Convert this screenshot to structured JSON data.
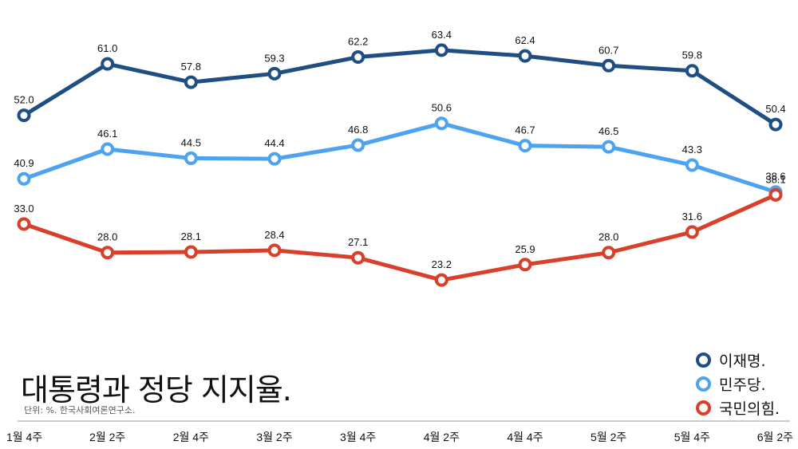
{
  "chart_data": {
    "type": "line",
    "title": "대통령과 정당 지지율.",
    "subtitle": "단위: %. 한국사회여론연구소.",
    "categories": [
      "1월 4주",
      "2월 2주",
      "2월 4주",
      "3월 2주",
      "3월 4주",
      "4월 2주",
      "4월 4주",
      "5월 2주",
      "5월 4주",
      "6월 2주"
    ],
    "series": [
      {
        "name": "이재명.",
        "color": "#1f4e82",
        "values": [
          52.0,
          61.0,
          57.8,
          59.3,
          62.2,
          63.4,
          62.4,
          60.7,
          59.8,
          50.4
        ],
        "labels": [
          "52.0",
          "61.0",
          "57.8",
          "59.3",
          "62.2",
          "63.4",
          "62.4",
          "60.7",
          "59.8",
          "50.4"
        ]
      },
      {
        "name": "민주당.",
        "color": "#4da3ef",
        "values": [
          40.9,
          46.1,
          44.5,
          44.4,
          46.8,
          50.6,
          46.7,
          46.5,
          43.3,
          38.6
        ],
        "labels": [
          "40.9",
          "46.1",
          "44.5",
          "44.4",
          "46.8",
          "50.6",
          "46.7",
          "46.5",
          "43.3",
          "38.6"
        ]
      },
      {
        "name": "국민의힘.",
        "color": "#d9402b",
        "values": [
          33.0,
          28.0,
          28.1,
          28.4,
          27.1,
          23.2,
          25.9,
          28.0,
          31.6,
          38.1
        ],
        "labels": [
          "33.0",
          "28.0",
          "28.1",
          "28.4",
          "27.1",
          "23.2",
          "25.9",
          "28.0",
          "31.6",
          "38.1"
        ]
      }
    ],
    "legend_position": "bottom-right",
    "grid": false
  }
}
